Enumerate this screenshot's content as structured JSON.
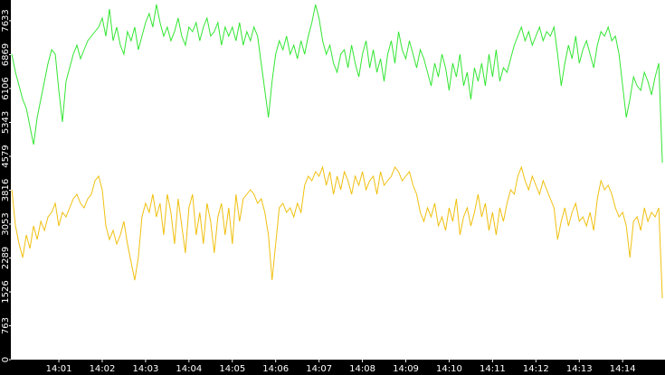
{
  "chart_data": {
    "type": "line",
    "categories": [
      null,
      null,
      null,
      null,
      null,
      null,
      null,
      null,
      null,
      null,
      null,
      null,
      null,
      "14:01",
      null,
      null,
      null,
      null,
      null,
      null,
      null,
      null,
      null,
      null,
      null,
      "14:02",
      null,
      null,
      null,
      null,
      null,
      null,
      null,
      null,
      null,
      null,
      null,
      "14:03",
      null,
      null,
      null,
      null,
      null,
      null,
      null,
      null,
      null,
      null,
      null,
      "14:04",
      null,
      null,
      null,
      null,
      null,
      null,
      null,
      null,
      null,
      null,
      null,
      "14:05",
      null,
      null,
      null,
      null,
      null,
      null,
      null,
      null,
      null,
      null,
      null,
      "14:06",
      null,
      null,
      null,
      null,
      null,
      null,
      null,
      null,
      null,
      null,
      null,
      "14:07",
      null,
      null,
      null,
      null,
      null,
      null,
      null,
      null,
      null,
      null,
      null,
      "14:08",
      null,
      null,
      null,
      null,
      null,
      null,
      null,
      null,
      null,
      null,
      null,
      "14:09",
      null,
      null,
      null,
      null,
      null,
      null,
      null,
      null,
      null,
      null,
      null,
      "14:10",
      null,
      null,
      null,
      null,
      null,
      null,
      null,
      null,
      null,
      null,
      null,
      "14:11",
      null,
      null,
      null,
      null,
      null,
      null,
      null,
      null,
      null,
      null,
      null,
      "14:12",
      null,
      null,
      null,
      null,
      null,
      null,
      null,
      null,
      null,
      null,
      null,
      "14:13",
      null,
      null,
      null,
      null,
      null,
      null,
      null,
      null,
      null,
      null,
      null,
      "14:14",
      null,
      null,
      null,
      null,
      null,
      null,
      null,
      null,
      null,
      null,
      null
    ],
    "series": [
      {
        "color": "#33e633",
        "values": [
          6878,
          6471,
          6166,
          5861,
          5657,
          5250,
          4843,
          5454,
          5861,
          6268,
          6675,
          6980,
          6878,
          6064,
          5352,
          6268,
          6573,
          6878,
          7082,
          6777,
          6980,
          7183,
          7285,
          7387,
          7489,
          7692,
          7285,
          7896,
          7183,
          7489,
          7082,
          6878,
          7387,
          7183,
          7489,
          6980,
          7285,
          7591,
          7794,
          7489,
          7998,
          7591,
          7285,
          7489,
          7183,
          7387,
          7692,
          7285,
          7082,
          7489,
          7387,
          7591,
          7183,
          7489,
          7692,
          7285,
          7387,
          7591,
          7082,
          7489,
          7285,
          7489,
          7183,
          7591,
          7082,
          7387,
          7183,
          7489,
          7285,
          6675,
          6064,
          5454,
          6268,
          6878,
          7183,
          6980,
          7285,
          6878,
          7082,
          6777,
          7183,
          6878,
          7285,
          7591,
          7998,
          7692,
          7183,
          6878,
          7082,
          6675,
          6471,
          6878,
          6980,
          6573,
          7082,
          6675,
          6369,
          6878,
          7183,
          6573,
          6980,
          6471,
          6777,
          6268,
          6878,
          7183,
          6675,
          7387,
          6980,
          6777,
          7183,
          6878,
          6573,
          6980,
          6777,
          6471,
          6166,
          6675,
          6369,
          6878,
          6573,
          6064,
          6675,
          6369,
          6878,
          6166,
          6471,
          5861,
          6573,
          6268,
          6675,
          6166,
          6878,
          6369,
          6980,
          6268,
          6573,
          6471,
          6777,
          7082,
          7285,
          7489,
          7183,
          7387,
          7082,
          7285,
          7489,
          7183,
          7387,
          7285,
          7489,
          6878,
          6166,
          6675,
          7082,
          6777,
          7285,
          6675,
          6980,
          7183,
          6878,
          6573,
          7082,
          7387,
          7285,
          7489,
          7183,
          7285,
          6878,
          6166,
          5454,
          5861,
          6369,
          6166,
          6064,
          6471,
          6268,
          5963,
          6369,
          6675,
          4436
        ]
      },
      {
        "color": "#f0c010",
        "values": [
          3826,
          3012,
          2605,
          2300,
          2808,
          2503,
          3012,
          2706,
          3114,
          2910,
          3215,
          3317,
          3521,
          3012,
          3317,
          3215,
          3419,
          3623,
          3724,
          3521,
          3419,
          3623,
          3724,
          4029,
          4131,
          3826,
          3012,
          2706,
          2910,
          2605,
          2808,
          3114,
          2605,
          2198,
          1791,
          2300,
          3215,
          3521,
          3317,
          3724,
          3215,
          3521,
          2808,
          3724,
          3317,
          2605,
          3623,
          3012,
          2401,
          3419,
          3724,
          2808,
          3317,
          2605,
          3521,
          3114,
          2401,
          3215,
          3521,
          2808,
          3419,
          2605,
          3724,
          3114,
          3623,
          3724,
          3826,
          3724,
          3521,
          3623,
          3317,
          2808,
          1791,
          2605,
          3419,
          3521,
          3317,
          3419,
          3215,
          3521,
          3317,
          3928,
          4131,
          4029,
          4233,
          4131,
          4335,
          3928,
          4233,
          3724,
          4131,
          3826,
          4233,
          4029,
          3724,
          4131,
          3928,
          4233,
          3826,
          4029,
          4131,
          3724,
          4233,
          3928,
          4029,
          4131,
          4335,
          4233,
          4029,
          4131,
          4233,
          3928,
          3724,
          3317,
          3114,
          3419,
          3215,
          3521,
          3012,
          3215,
          2910,
          3419,
          3114,
          3623,
          2808,
          3215,
          3419,
          3012,
          3317,
          3724,
          3215,
          3521,
          2910,
          3317,
          2808,
          3419,
          3114,
          3521,
          3826,
          3724,
          4131,
          4335,
          4029,
          3826,
          4131,
          3928,
          3724,
          4029,
          3826,
          3623,
          3419,
          2706,
          3114,
          3419,
          3012,
          3317,
          3521,
          3114,
          3215,
          3012,
          3317,
          2910,
          3623,
          4029,
          3826,
          3928,
          3724,
          3419,
          3215,
          3317,
          3012,
          2300,
          3114,
          3215,
          2910,
          3419,
          3114,
          3317,
          3215,
          3419,
          1384
        ]
      }
    ],
    "ylim": [
      0,
      8100
    ],
    "yticks": [
      0,
      763,
      1526,
      2289,
      3053,
      3816,
      4579,
      5343,
      6106,
      6869,
      7633
    ]
  }
}
